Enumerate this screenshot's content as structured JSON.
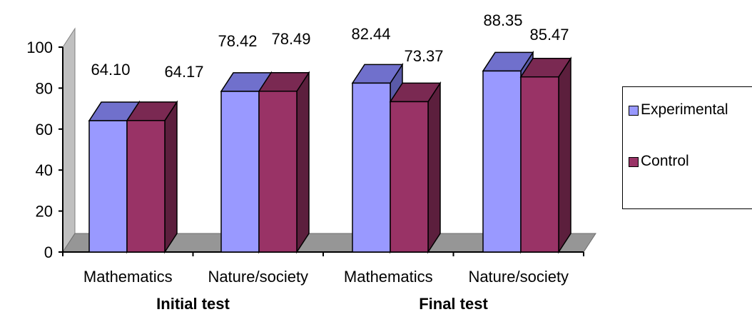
{
  "chart_data": {
    "type": "bar",
    "categories": [
      "Mathematics",
      "Nature/society",
      "Mathematics",
      "Nature/society"
    ],
    "groups": [
      {
        "label": "Initial test",
        "categories": [
          "Mathematics",
          "Nature/society"
        ]
      },
      {
        "label": "Final test",
        "categories": [
          "Mathematics",
          "Nature/society"
        ]
      }
    ],
    "series": [
      {
        "name": "Experimental",
        "values": [
          64.1,
          78.42,
          82.44,
          88.35
        ],
        "value_labels": [
          "64.10",
          "78.42",
          "82.44",
          "88.35"
        ],
        "color": "#9999ff",
        "top_color": "#7070cc",
        "side_color": "#5a5aa8"
      },
      {
        "name": "Control",
        "values": [
          64.17,
          78.49,
          73.37,
          85.47
        ],
        "value_labels": [
          "64.17",
          "78.49",
          "73.37",
          "85.47"
        ],
        "color": "#993366",
        "top_color": "#7a2952",
        "side_color": "#5c1f3d"
      }
    ],
    "yticks": [
      "0",
      "20",
      "40",
      "60",
      "80",
      "100"
    ],
    "ylim": [
      0,
      100
    ],
    "legend_position": "right",
    "style": "3d-clustered-column"
  }
}
